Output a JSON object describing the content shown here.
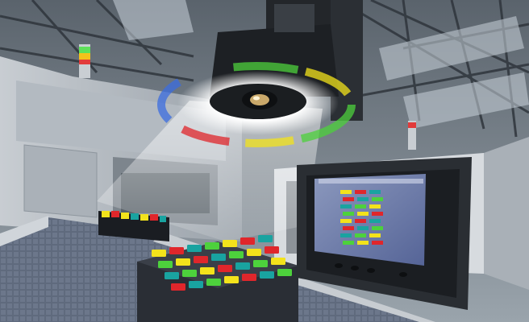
{
  "scene": {
    "description_tags": [
      "factory-interior",
      "machine-vision-camera",
      "ring-light",
      "conveyor-belt",
      "monitor"
    ],
    "colors": {
      "ceiling": "#7d8790",
      "ceiling_dark": "#3c434b",
      "light_beam": "#f4f6f8",
      "ring_light": "#ffffff",
      "conveyor": "#5b6578",
      "monitor_bezel": "#2a2e33",
      "screen_bg": "#6f7fa8",
      "part_yellow": "#f3e31b",
      "part_red": "#e0262b",
      "part_teal": "#19a3a0",
      "part_green": "#4dd13c",
      "signal_green": "#5ee05a",
      "signal_red": "#e23b3b"
    },
    "icons": [
      "camera-lens-icon",
      "signal-tower-icon"
    ]
  }
}
